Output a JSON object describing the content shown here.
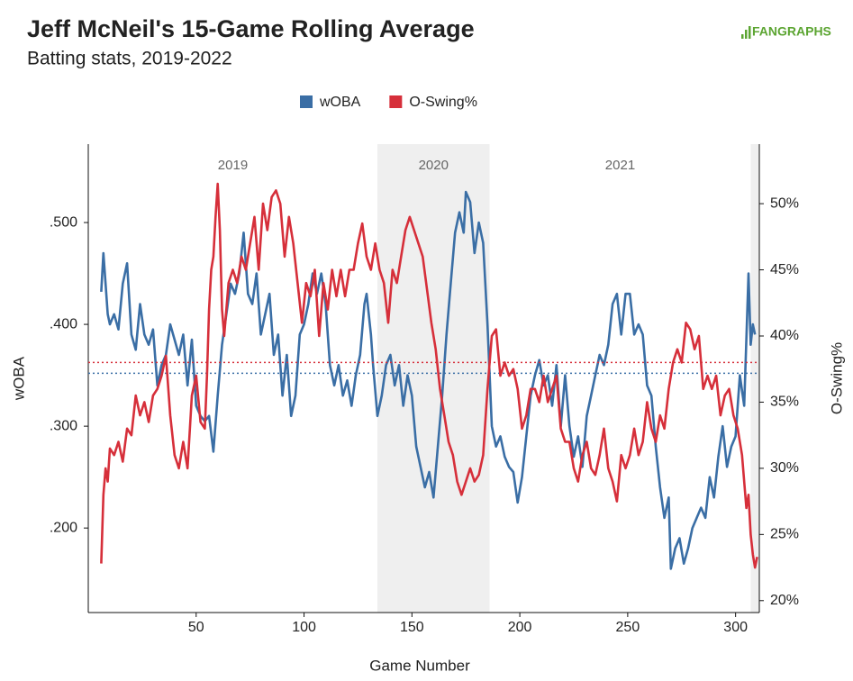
{
  "chart_data": {
    "type": "line",
    "title": "Jeff McNeil's 15-Game Rolling Average",
    "subtitle": "Batting stats, 2019-2022",
    "logo": "FANGRAPHS",
    "x_label": "Game Number",
    "y_label": "wOBA",
    "y2_label": "O-Swing%",
    "xlim": [
      0,
      311
    ],
    "xticks": [
      50,
      100,
      150,
      200,
      250,
      300
    ],
    "ylim": [
      0.117,
      0.577
    ],
    "yticks": [
      {
        "value": 0.2,
        "label": ".200"
      },
      {
        "value": 0.3,
        "label": ".300"
      },
      {
        "value": 0.4,
        "label": ".400"
      },
      {
        "value": 0.5,
        "label": ".500"
      }
    ],
    "y2lim": [
      19.1,
      54.5
    ],
    "y2ticks": [
      {
        "value": 20,
        "label": "20%"
      },
      {
        "value": 25,
        "label": "25%"
      },
      {
        "value": 30,
        "label": "30%"
      },
      {
        "value": 35,
        "label": "35%"
      },
      {
        "value": 40,
        "label": "40%"
      },
      {
        "value": 45,
        "label": "45%"
      },
      {
        "value": 50,
        "label": "50%"
      }
    ],
    "legend": "top",
    "seasons": [
      {
        "label": "2019",
        "start": 0,
        "end": 134,
        "shaded": false
      },
      {
        "label": "2020",
        "start": 134,
        "end": 186,
        "shaded": true
      },
      {
        "label": "2021",
        "start": 186,
        "end": 307,
        "shaded": false
      },
      {
        "start": 307,
        "end": 311,
        "shaded": true
      }
    ],
    "series": [
      {
        "name": "wOBA",
        "color": "#3a6ea5",
        "axis": "y",
        "mean": 0.352,
        "x": [
          6,
          7,
          9,
          10,
          12,
          14,
          16,
          18,
          20,
          22,
          24,
          26,
          28,
          30,
          32,
          34,
          36,
          38,
          40,
          42,
          44,
          46,
          48,
          50,
          52,
          54,
          56,
          58,
          60,
          62,
          64,
          66,
          68,
          70,
          72,
          74,
          76,
          78,
          80,
          82,
          84,
          86,
          88,
          90,
          92,
          94,
          96,
          98,
          100,
          102,
          104,
          106,
          108,
          110,
          112,
          114,
          116,
          118,
          120,
          122,
          124,
          126,
          128,
          129,
          131,
          132,
          134,
          136,
          138,
          140,
          142,
          144,
          146,
          148,
          150,
          152,
          154,
          156,
          158,
          160,
          162,
          164,
          166,
          168,
          170,
          172,
          174,
          175,
          177,
          179,
          181,
          183,
          185,
          187,
          189,
          191,
          193,
          195,
          197,
          199,
          201,
          203,
          205,
          207,
          209,
          211,
          213,
          215,
          217,
          219,
          221,
          223,
          225,
          227,
          229,
          231,
          233,
          235,
          237,
          239,
          241,
          243,
          245,
          247,
          249,
          251,
          253,
          255,
          257,
          259,
          261,
          263,
          265,
          267,
          269,
          270,
          272,
          274,
          276,
          278,
          280,
          282,
          284,
          286,
          288,
          290,
          292,
          294,
          296,
          298,
          300,
          302,
          304,
          306,
          307,
          308,
          309
        ],
        "values": [
          0.432,
          0.47,
          0.41,
          0.4,
          0.41,
          0.395,
          0.44,
          0.46,
          0.39,
          0.375,
          0.42,
          0.39,
          0.38,
          0.395,
          0.34,
          0.36,
          0.37,
          0.4,
          0.385,
          0.37,
          0.39,
          0.34,
          0.385,
          0.32,
          0.31,
          0.305,
          0.31,
          0.275,
          0.33,
          0.38,
          0.41,
          0.44,
          0.43,
          0.45,
          0.49,
          0.43,
          0.42,
          0.45,
          0.39,
          0.41,
          0.43,
          0.37,
          0.39,
          0.33,
          0.37,
          0.31,
          0.33,
          0.39,
          0.4,
          0.42,
          0.45,
          0.43,
          0.45,
          0.42,
          0.36,
          0.34,
          0.36,
          0.33,
          0.345,
          0.32,
          0.35,
          0.37,
          0.42,
          0.43,
          0.39,
          0.36,
          0.31,
          0.33,
          0.36,
          0.37,
          0.34,
          0.36,
          0.32,
          0.35,
          0.33,
          0.28,
          0.26,
          0.24,
          0.255,
          0.23,
          0.28,
          0.33,
          0.39,
          0.44,
          0.49,
          0.51,
          0.49,
          0.53,
          0.52,
          0.47,
          0.5,
          0.48,
          0.4,
          0.3,
          0.28,
          0.29,
          0.27,
          0.26,
          0.255,
          0.225,
          0.25,
          0.29,
          0.33,
          0.35,
          0.365,
          0.34,
          0.35,
          0.32,
          0.36,
          0.3,
          0.35,
          0.3,
          0.27,
          0.29,
          0.26,
          0.31,
          0.33,
          0.35,
          0.37,
          0.36,
          0.38,
          0.42,
          0.43,
          0.39,
          0.43,
          0.43,
          0.39,
          0.4,
          0.39,
          0.34,
          0.33,
          0.28,
          0.24,
          0.21,
          0.23,
          0.16,
          0.18,
          0.19,
          0.165,
          0.18,
          0.2,
          0.21,
          0.22,
          0.21,
          0.25,
          0.23,
          0.27,
          0.3,
          0.26,
          0.28,
          0.29,
          0.35,
          0.32,
          0.45,
          0.38,
          0.4,
          0.39
        ]
      },
      {
        "name": "O-Swing%",
        "color": "#d62f3a",
        "axis": "y2",
        "mean": 38.0,
        "x": [
          6,
          7,
          8,
          9,
          10,
          12,
          14,
          16,
          18,
          20,
          22,
          24,
          26,
          28,
          30,
          32,
          34,
          36,
          38,
          40,
          42,
          44,
          46,
          48,
          50,
          52,
          54,
          55,
          56,
          57,
          58,
          59,
          60,
          61,
          62,
          63,
          65,
          67,
          69,
          71,
          73,
          75,
          77,
          79,
          81,
          83,
          85,
          87,
          89,
          91,
          93,
          95,
          97,
          99,
          101,
          103,
          105,
          107,
          109,
          111,
          113,
          115,
          117,
          119,
          121,
          123,
          125,
          127,
          129,
          131,
          133,
          135,
          137,
          139,
          141,
          143,
          145,
          147,
          149,
          151,
          153,
          155,
          157,
          159,
          161,
          163,
          165,
          167,
          169,
          171,
          173,
          175,
          177,
          179,
          181,
          183,
          185,
          187,
          189,
          191,
          193,
          195,
          197,
          199,
          201,
          203,
          205,
          207,
          209,
          211,
          213,
          215,
          217,
          219,
          221,
          223,
          225,
          227,
          229,
          231,
          233,
          235,
          237,
          239,
          241,
          243,
          245,
          247,
          249,
          251,
          253,
          255,
          257,
          259,
          261,
          263,
          265,
          267,
          269,
          271,
          273,
          275,
          277,
          279,
          281,
          283,
          285,
          287,
          289,
          291,
          293,
          295,
          297,
          299,
          301,
          303,
          305,
          306,
          307,
          308,
          309,
          310
        ],
        "values": [
          22.8,
          28,
          30,
          29,
          31.5,
          31,
          32,
          30.5,
          33,
          32.5,
          35.5,
          34,
          35,
          33.5,
          35.5,
          36,
          37,
          38.5,
          34,
          31,
          30,
          32,
          30,
          35.5,
          37,
          33.5,
          33,
          37,
          42,
          45,
          46,
          49,
          51.5,
          48,
          42,
          40,
          44,
          45,
          44,
          46,
          45,
          47,
          49,
          45,
          50,
          48,
          50.5,
          51,
          50,
          46,
          49,
          47,
          44,
          41,
          44,
          43,
          45,
          40,
          44,
          42,
          45,
          43,
          45,
          43,
          45,
          45,
          47,
          48.5,
          46,
          45,
          47,
          45,
          44,
          41,
          45,
          44,
          46,
          48,
          49,
          48,
          47,
          46,
          43.5,
          41,
          39,
          36,
          34,
          32,
          31,
          29,
          28,
          29,
          30,
          29,
          29.5,
          31,
          36,
          40,
          40.5,
          37,
          38,
          37,
          37.5,
          36,
          33,
          34,
          36,
          36,
          35,
          37,
          35,
          36,
          37,
          33,
          32,
          32,
          30,
          29,
          31,
          32,
          30,
          29.5,
          31,
          33,
          30,
          29,
          27.5,
          31,
          30,
          31,
          33,
          31,
          32,
          35,
          33,
          32,
          34,
          33,
          36,
          38,
          39,
          38,
          41,
          40.5,
          39,
          40,
          36,
          37,
          36,
          37,
          34,
          35.5,
          36,
          34,
          33,
          31,
          27,
          28,
          25,
          23.5,
          22.5,
          23.3
        ]
      }
    ]
  }
}
